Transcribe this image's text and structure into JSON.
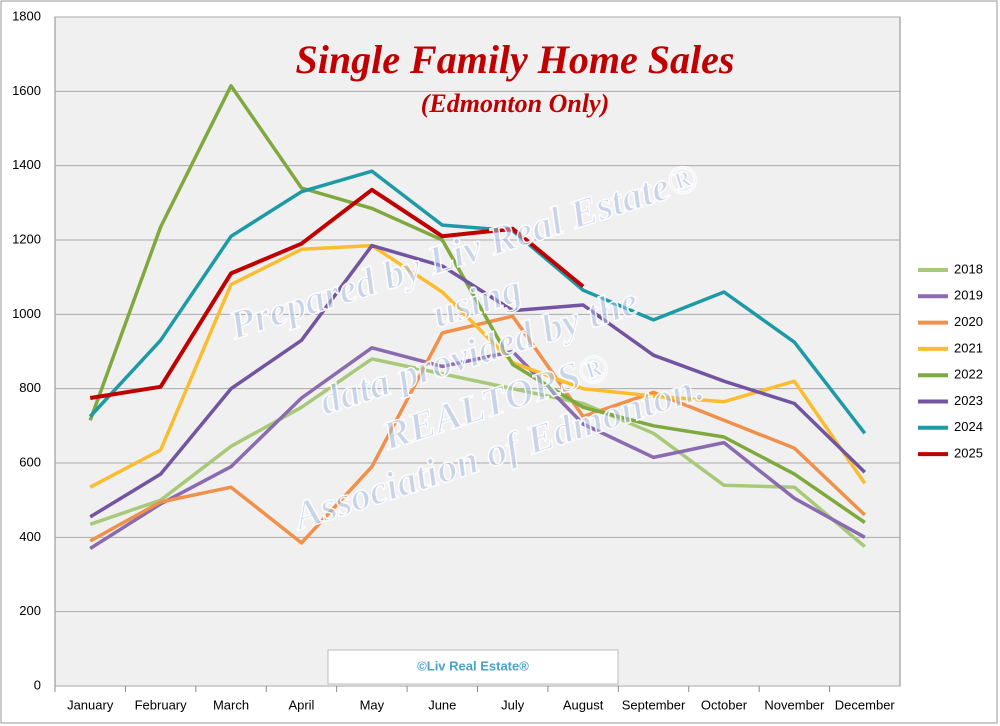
{
  "chart_data": {
    "type": "line",
    "title": "Single Family Home Sales",
    "subtitle": "(Edmonton Only)",
    "watermark": [
      "Prepared by Liv Real Estate®",
      "using",
      "data provided by the",
      "REALTORS®",
      "Association of Edmonton."
    ],
    "credit": "©Liv Real Estate®",
    "categories": [
      "January",
      "February",
      "March",
      "April",
      "May",
      "June",
      "July",
      "August",
      "September",
      "October",
      "November",
      "December"
    ],
    "ylim": [
      0,
      1800
    ],
    "yticks": [
      0,
      200,
      400,
      600,
      800,
      1000,
      1200,
      1400,
      1600,
      1800
    ],
    "grid": true,
    "legend": "right",
    "series": [
      {
        "name": "2018",
        "color": "#a9c97a",
        "values": [
          435,
          500,
          645,
          750,
          880,
          840,
          800,
          760,
          680,
          540,
          535,
          375
        ]
      },
      {
        "name": "2019",
        "color": "#8a6bb0",
        "values": [
          370,
          490,
          590,
          775,
          910,
          860,
          900,
          705,
          615,
          655,
          505,
          400
        ]
      },
      {
        "name": "2020",
        "color": "#f0904a",
        "values": [
          390,
          495,
          535,
          385,
          590,
          950,
          995,
          725,
          790,
          715,
          640,
          460
        ]
      },
      {
        "name": "2021",
        "color": "#fbbd2f",
        "values": [
          535,
          635,
          1080,
          1175,
          1185,
          1060,
          870,
          800,
          780,
          765,
          820,
          545
        ]
      },
      {
        "name": "2022",
        "color": "#7fa83e",
        "values": [
          715,
          1235,
          1615,
          1340,
          1285,
          1200,
          865,
          750,
          700,
          670,
          570,
          440
        ]
      },
      {
        "name": "2023",
        "color": "#7254a0",
        "values": [
          455,
          570,
          800,
          930,
          1185,
          1130,
          1010,
          1025,
          890,
          820,
          760,
          575
        ]
      },
      {
        "name": "2024",
        "color": "#1c9aa6",
        "values": [
          725,
          930,
          1210,
          1330,
          1385,
          1240,
          1225,
          1065,
          985,
          1060,
          925,
          680
        ]
      },
      {
        "name": "2025",
        "color": "#c00000",
        "values": [
          775,
          805,
          1110,
          1190,
          1335,
          1210,
          1230,
          1075,
          null,
          null,
          null,
          null
        ]
      }
    ]
  }
}
